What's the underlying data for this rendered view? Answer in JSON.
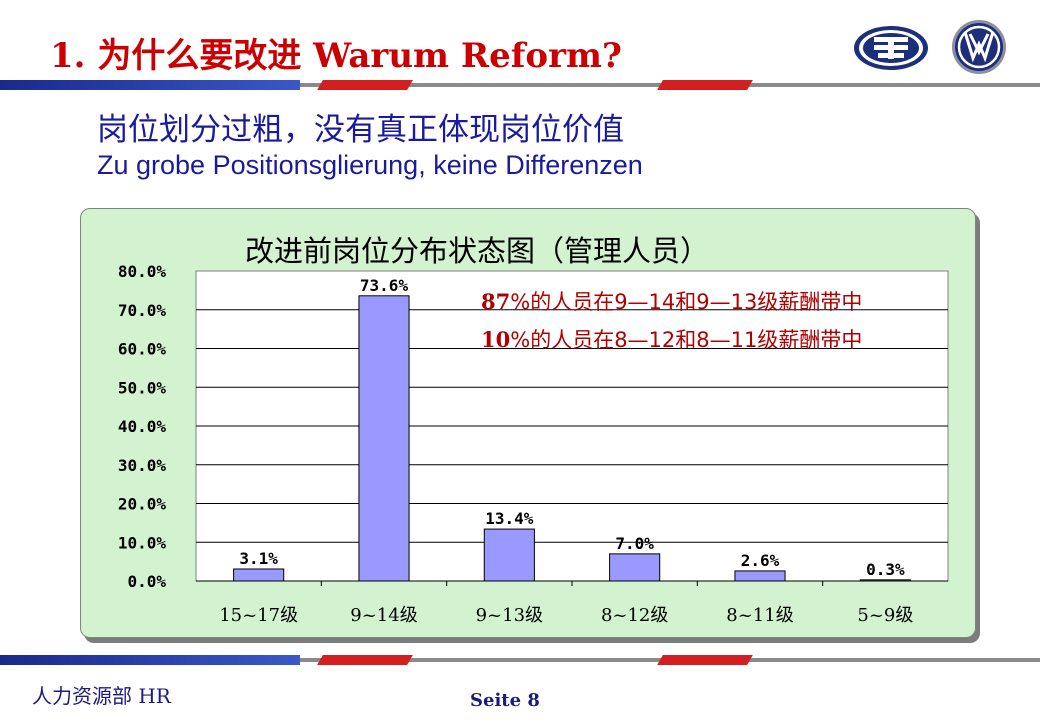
{
  "header": {
    "title": "1. 为什么要改进  Warum Reform?",
    "logo_left_name": "faw-logo",
    "logo_right_name": "vw-logo"
  },
  "subtitle": {
    "cn": "岗位划分过粗，没有真正体现岗位价值",
    "de": "Zu grobe Positionsglierung, keine Differenzen"
  },
  "chart_data": {
    "type": "bar",
    "title": "改进前岗位分布状态图（管理人员）",
    "categories": [
      "15~17级",
      "9~14级",
      "9~13级",
      "8~12级",
      "8~11级",
      "5~9级"
    ],
    "values": [
      3.1,
      73.6,
      13.4,
      7.0,
      2.6,
      0.3
    ],
    "value_labels": [
      "3.1%",
      "73.6%",
      "13.4%",
      "7.0%",
      "2.6%",
      "0.3%"
    ],
    "y_ticks": [
      "0.0%",
      "10.0%",
      "20.0%",
      "30.0%",
      "40.0%",
      "50.0%",
      "60.0%",
      "70.0%",
      "80.0%"
    ],
    "ylim": [
      0,
      80
    ],
    "grid": true,
    "bar_color": "#9999ff",
    "xlabel": "",
    "ylabel": ""
  },
  "annotations": [
    {
      "bold": "87",
      "text": "%的人员在9—14和9—13级薪酬带中"
    },
    {
      "bold": "10",
      "text": "%的人员在8—12和8—11级薪酬带中"
    }
  ],
  "footer": {
    "left": "人力资源部  HR",
    "page": "Seite  8"
  },
  "colors": {
    "title_red": "#cc0000",
    "subtitle_blue": "#1a1aa0",
    "panel_green": "#d3f2cf",
    "annotation_red": "#b00000"
  }
}
